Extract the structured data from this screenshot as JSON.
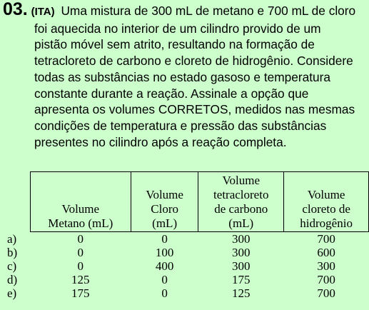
{
  "question": {
    "number": "03.",
    "source": "(ITA)",
    "lines": [
      "Uma mistura de 300 mL de metano e 700 mL de cloro",
      "foi aquecida no interior de um cilindro provido de um",
      "pistão móvel sem atrito, resultando na formação de",
      "tetracloreto de carbono e cloreto de hidrogênio. Considere",
      "todas as substâncias no estado gasoso e temperatura",
      "constante durante a reação. Assinale a opção que",
      "apresenta os volumes CORRETOS, medidos nas mesmas",
      "condições de temperatura e pressão das substâncias",
      "presentes no cilindro após a reação completa."
    ]
  },
  "table": {
    "headers": [
      [
        "Volume",
        "Metano (mL)"
      ],
      [
        "Volume",
        "Cloro",
        "(mL)"
      ],
      [
        "Volume",
        "tetracloreto",
        "de carbono",
        "(mL)"
      ],
      [
        "Volume",
        "cloreto de",
        "hidrogênio"
      ]
    ],
    "rows": [
      {
        "option": "a)",
        "values": [
          "0",
          "0",
          "300",
          "700"
        ]
      },
      {
        "option": "b)",
        "values": [
          "0",
          "100",
          "300",
          "600"
        ]
      },
      {
        "option": "c)",
        "values": [
          "0",
          "400",
          "300",
          "300"
        ]
      },
      {
        "option": "d)",
        "values": [
          "125",
          "0",
          "175",
          "700"
        ]
      },
      {
        "option": "e)",
        "values": [
          "175",
          "0",
          "125",
          "700"
        ]
      }
    ]
  }
}
